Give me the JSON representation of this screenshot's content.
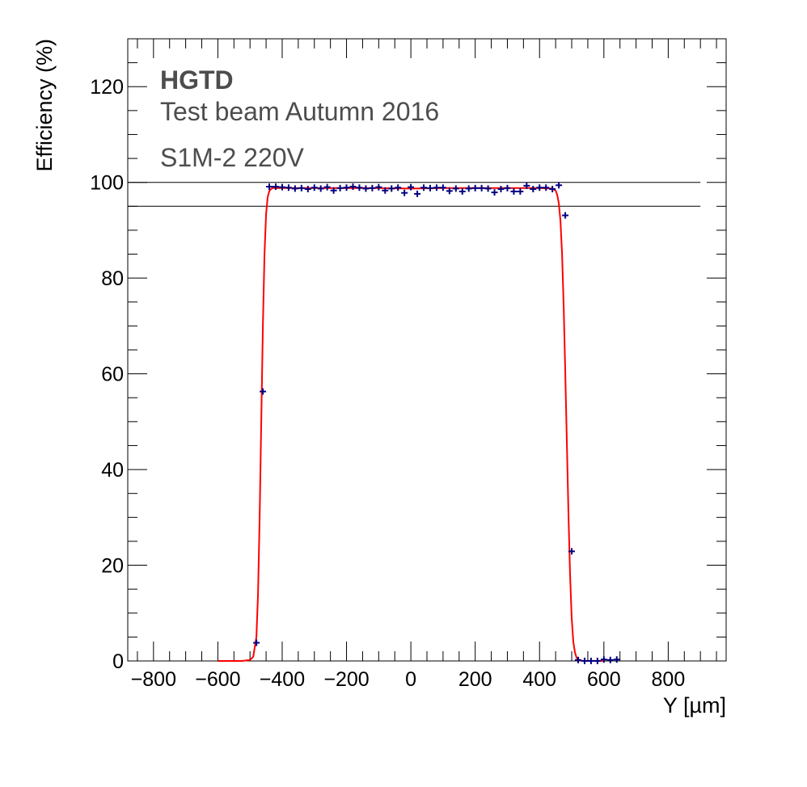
{
  "chart_data": {
    "type": "scatter",
    "xlabel": "Y [µm]",
    "ylabel": "Efficiency (%)",
    "xlim": [
      -880,
      980
    ],
    "ylim": [
      0,
      130
    ],
    "x_ticks": [
      -800,
      -600,
      -400,
      -200,
      0,
      200,
      400,
      600,
      800
    ],
    "x_tick_labels": [
      "−800",
      "−600",
      "−400",
      "−200",
      "0",
      "200",
      "400",
      "600",
      "800"
    ],
    "y_ticks": [
      0,
      20,
      40,
      60,
      80,
      100,
      120
    ],
    "y_tick_labels": [
      "0",
      "20",
      "40",
      "60",
      "80",
      "100",
      "120"
    ],
    "annotations": [
      "HGTD",
      "Test beam Autumn 2016",
      "S1M-2 220V"
    ],
    "reference_lines": [
      100,
      95
    ],
    "reference_line_range": [
      -880,
      900
    ],
    "grid": false,
    "colors": {
      "data_points": "#000080",
      "fit": "#ff0000",
      "reference": "#000000"
    },
    "series": [
      {
        "type": "points",
        "x_err": 10,
        "x": [
          -480,
          -460,
          -440,
          -420,
          -400,
          -380,
          -360,
          -340,
          -320,
          -300,
          -280,
          -260,
          -240,
          -220,
          -200,
          -180,
          -160,
          -140,
          -120,
          -100,
          -80,
          -60,
          -40,
          -20,
          0,
          20,
          40,
          60,
          80,
          100,
          120,
          140,
          160,
          180,
          200,
          220,
          240,
          260,
          280,
          300,
          320,
          340,
          360,
          380,
          400,
          420,
          440,
          460,
          480,
          500,
          520,
          540,
          560,
          580,
          600,
          620,
          640
        ],
        "y": [
          3.8,
          56.3,
          99.1,
          99.1,
          99.0,
          98.9,
          98.7,
          98.8,
          98.6,
          98.9,
          98.7,
          99.0,
          98.3,
          98.8,
          98.9,
          99.1,
          98.9,
          98.7,
          98.8,
          99.0,
          98.3,
          98.7,
          98.9,
          97.8,
          99.0,
          97.6,
          98.9,
          98.8,
          98.9,
          98.9,
          98.2,
          98.7,
          98.1,
          98.7,
          98.8,
          98.8,
          98.7,
          97.9,
          98.6,
          98.8,
          98.1,
          98.1,
          99.3,
          98.6,
          98.9,
          98.9,
          98.6,
          99.4,
          93.1,
          22.9,
          0.2,
          0.0,
          0.0,
          0.0,
          0.3,
          0.2,
          0.3
        ]
      },
      {
        "type": "fit",
        "x": [
          -600,
          -525,
          -500,
          -490,
          -480,
          -475,
          -470,
          -465,
          -460,
          -455,
          -450,
          -445,
          -440,
          -435,
          -430,
          -420,
          -400,
          -300,
          -200,
          -100,
          0,
          100,
          200,
          300,
          400,
          440,
          450,
          455,
          460,
          465,
          470,
          475,
          480,
          485,
          490,
          495,
          500,
          505,
          510,
          515,
          520,
          530,
          600
        ],
        "y": [
          0,
          0,
          0.2,
          0.9,
          5,
          14,
          30,
          50,
          70,
          85,
          93.5,
          97,
          98.2,
          98.6,
          98.8,
          98.8,
          98.8,
          98.8,
          98.8,
          98.8,
          98.7,
          98.8,
          98.8,
          98.8,
          98.8,
          98.7,
          98.3,
          97.4,
          95.6,
          92,
          85,
          74,
          60,
          45,
          30,
          18,
          9,
          4,
          1.8,
          0.7,
          0.3,
          0.05,
          0
        ]
      }
    ]
  }
}
